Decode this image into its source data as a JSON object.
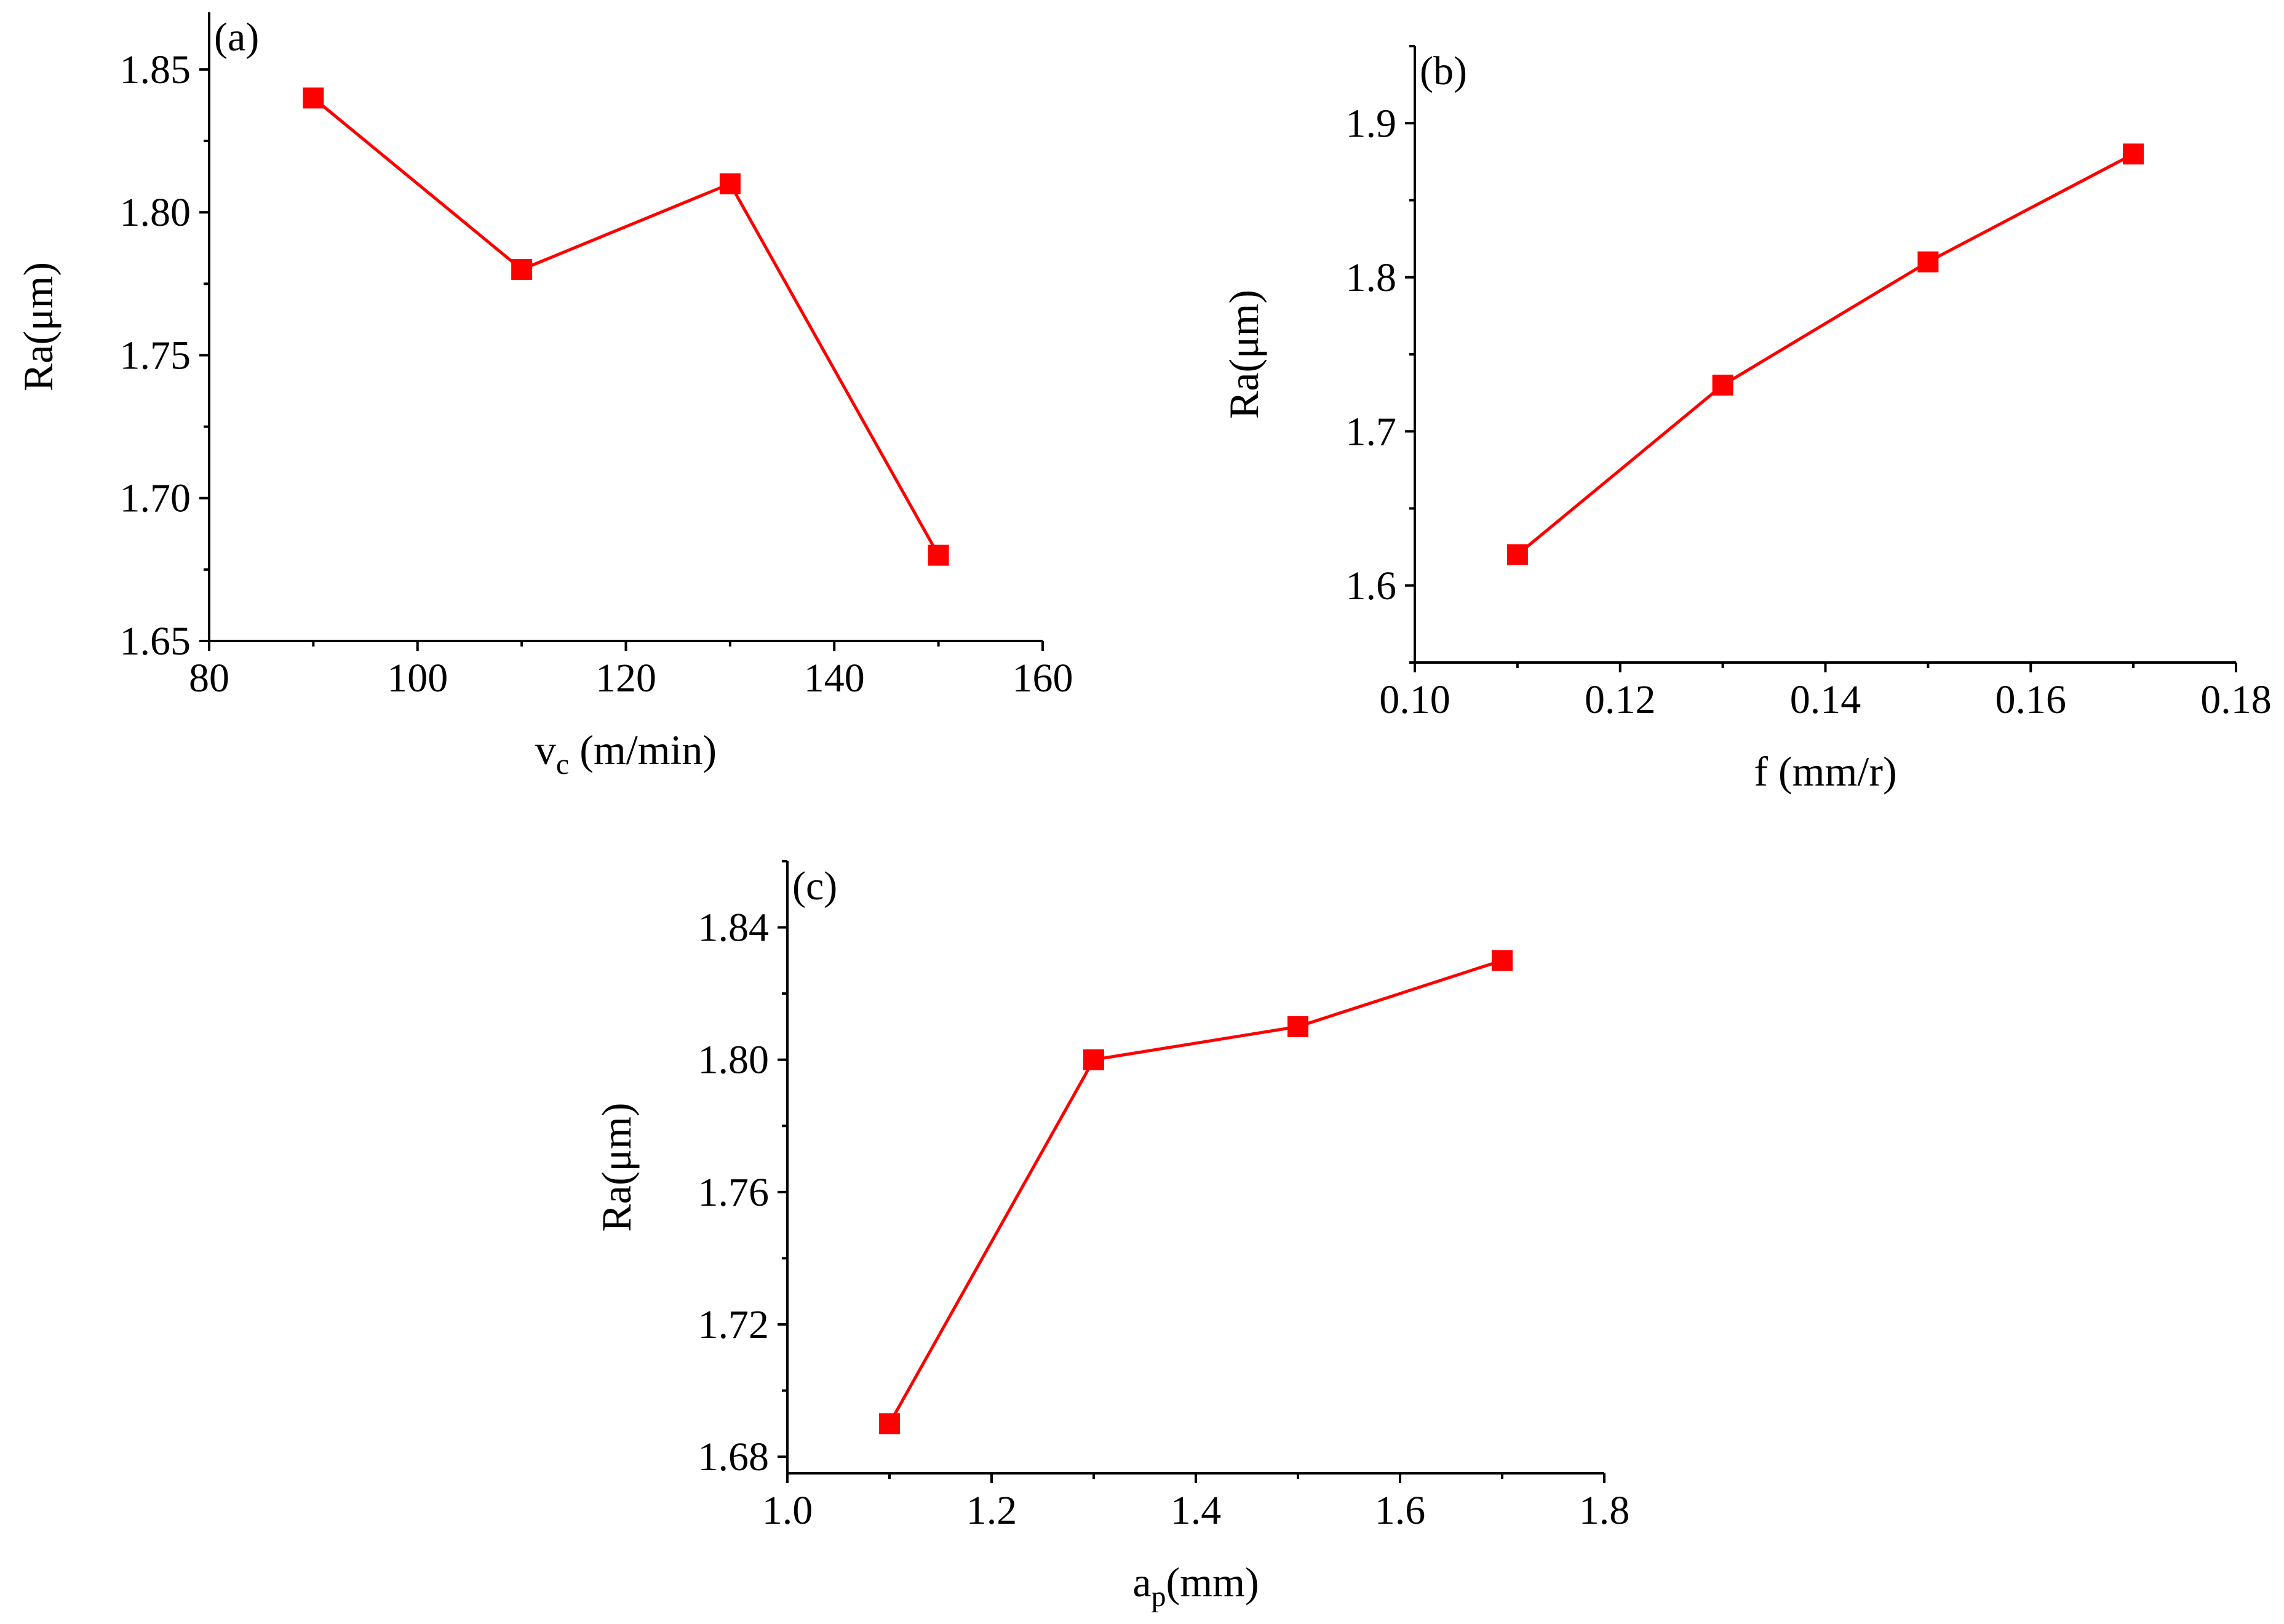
{
  "chart_data": [
    {
      "type": "line",
      "panel_label": "(a)",
      "xlabel": {
        "main": "v",
        "sub": "c",
        "tail": " (m/min)"
      },
      "ylabel": "Ra(μm)",
      "xlim": [
        80,
        160
      ],
      "ylim": [
        1.65,
        1.87
      ],
      "xticks": [
        "80",
        "100",
        "120",
        "140",
        "160"
      ],
      "yticks": [
        "1.65",
        "1.70",
        "1.75",
        "1.80",
        "1.85"
      ],
      "y_minor_step": 0.025,
      "x": [
        90,
        110,
        130,
        150
      ],
      "y": [
        1.84,
        1.78,
        1.81,
        1.68
      ],
      "color": "#ff0000",
      "marker": "square"
    },
    {
      "type": "line",
      "panel_label": "(b)",
      "xlabel": {
        "main": "f (mm/r)",
        "sub": "",
        "tail": ""
      },
      "ylabel": "Ra(μm)",
      "xlim": [
        0.1,
        0.18
      ],
      "ylim": [
        1.55,
        1.95
      ],
      "xticks": [
        "0.10",
        "0.12",
        "0.14",
        "0.16",
        "0.18"
      ],
      "yticks": [
        "1.6",
        "1.7",
        "1.8",
        "1.9"
      ],
      "y_minor_step": 0.05,
      "x": [
        0.11,
        0.13,
        0.15,
        0.17
      ],
      "y": [
        1.62,
        1.73,
        1.81,
        1.88
      ],
      "color": "#ff0000",
      "marker": "square"
    },
    {
      "type": "line",
      "panel_label": "(c)",
      "xlabel": {
        "main": "a",
        "sub": "p",
        "tail": "(mm)"
      },
      "ylabel": "Ra(μm)",
      "xlim": [
        1.0,
        1.8
      ],
      "ylim": [
        1.675,
        1.86
      ],
      "xticks": [
        "1.0",
        "1.2",
        "1.4",
        "1.6",
        "1.8"
      ],
      "yticks": [
        "1.68",
        "1.72",
        "1.76",
        "1.80",
        "1.84"
      ],
      "y_minor_step": 0.02,
      "x": [
        1.1,
        1.3,
        1.5,
        1.7
      ],
      "y": [
        1.69,
        1.8,
        1.81,
        1.83
      ],
      "color": "#ff0000",
      "marker": "square"
    }
  ]
}
